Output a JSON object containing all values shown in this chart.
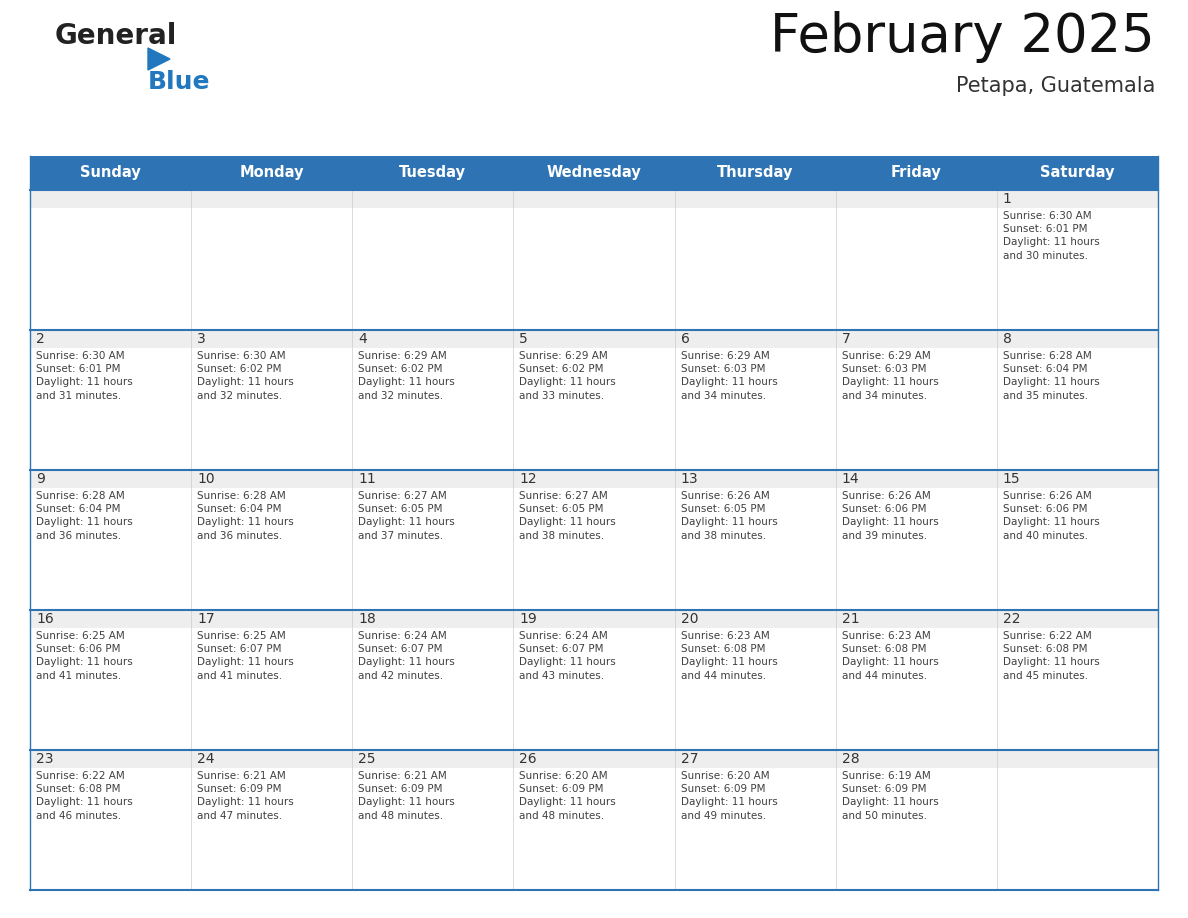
{
  "title": "February 2025",
  "subtitle": "Petapa, Guatemala",
  "header_bg": "#2E74B5",
  "header_text_color": "#FFFFFF",
  "cell_bg": "#FFFFFF",
  "cell_day_bg": "#EEEEEE",
  "cell_border_color": "#2E74B5",
  "cell_vert_border": "#CCCCCC",
  "day_num_color": "#333333",
  "body_text_color": "#404040",
  "days_of_week": [
    "Sunday",
    "Monday",
    "Tuesday",
    "Wednesday",
    "Thursday",
    "Friday",
    "Saturday"
  ],
  "weeks": [
    [
      {
        "day": "",
        "info": ""
      },
      {
        "day": "",
        "info": ""
      },
      {
        "day": "",
        "info": ""
      },
      {
        "day": "",
        "info": ""
      },
      {
        "day": "",
        "info": ""
      },
      {
        "day": "",
        "info": ""
      },
      {
        "day": "1",
        "info": "Sunrise: 6:30 AM\nSunset: 6:01 PM\nDaylight: 11 hours\nand 30 minutes."
      }
    ],
    [
      {
        "day": "2",
        "info": "Sunrise: 6:30 AM\nSunset: 6:01 PM\nDaylight: 11 hours\nand 31 minutes."
      },
      {
        "day": "3",
        "info": "Sunrise: 6:30 AM\nSunset: 6:02 PM\nDaylight: 11 hours\nand 32 minutes."
      },
      {
        "day": "4",
        "info": "Sunrise: 6:29 AM\nSunset: 6:02 PM\nDaylight: 11 hours\nand 32 minutes."
      },
      {
        "day": "5",
        "info": "Sunrise: 6:29 AM\nSunset: 6:02 PM\nDaylight: 11 hours\nand 33 minutes."
      },
      {
        "day": "6",
        "info": "Sunrise: 6:29 AM\nSunset: 6:03 PM\nDaylight: 11 hours\nand 34 minutes."
      },
      {
        "day": "7",
        "info": "Sunrise: 6:29 AM\nSunset: 6:03 PM\nDaylight: 11 hours\nand 34 minutes."
      },
      {
        "day": "8",
        "info": "Sunrise: 6:28 AM\nSunset: 6:04 PM\nDaylight: 11 hours\nand 35 minutes."
      }
    ],
    [
      {
        "day": "9",
        "info": "Sunrise: 6:28 AM\nSunset: 6:04 PM\nDaylight: 11 hours\nand 36 minutes."
      },
      {
        "day": "10",
        "info": "Sunrise: 6:28 AM\nSunset: 6:04 PM\nDaylight: 11 hours\nand 36 minutes."
      },
      {
        "day": "11",
        "info": "Sunrise: 6:27 AM\nSunset: 6:05 PM\nDaylight: 11 hours\nand 37 minutes."
      },
      {
        "day": "12",
        "info": "Sunrise: 6:27 AM\nSunset: 6:05 PM\nDaylight: 11 hours\nand 38 minutes."
      },
      {
        "day": "13",
        "info": "Sunrise: 6:26 AM\nSunset: 6:05 PM\nDaylight: 11 hours\nand 38 minutes."
      },
      {
        "day": "14",
        "info": "Sunrise: 6:26 AM\nSunset: 6:06 PM\nDaylight: 11 hours\nand 39 minutes."
      },
      {
        "day": "15",
        "info": "Sunrise: 6:26 AM\nSunset: 6:06 PM\nDaylight: 11 hours\nand 40 minutes."
      }
    ],
    [
      {
        "day": "16",
        "info": "Sunrise: 6:25 AM\nSunset: 6:06 PM\nDaylight: 11 hours\nand 41 minutes."
      },
      {
        "day": "17",
        "info": "Sunrise: 6:25 AM\nSunset: 6:07 PM\nDaylight: 11 hours\nand 41 minutes."
      },
      {
        "day": "18",
        "info": "Sunrise: 6:24 AM\nSunset: 6:07 PM\nDaylight: 11 hours\nand 42 minutes."
      },
      {
        "day": "19",
        "info": "Sunrise: 6:24 AM\nSunset: 6:07 PM\nDaylight: 11 hours\nand 43 minutes."
      },
      {
        "day": "20",
        "info": "Sunrise: 6:23 AM\nSunset: 6:08 PM\nDaylight: 11 hours\nand 44 minutes."
      },
      {
        "day": "21",
        "info": "Sunrise: 6:23 AM\nSunset: 6:08 PM\nDaylight: 11 hours\nand 44 minutes."
      },
      {
        "day": "22",
        "info": "Sunrise: 6:22 AM\nSunset: 6:08 PM\nDaylight: 11 hours\nand 45 minutes."
      }
    ],
    [
      {
        "day": "23",
        "info": "Sunrise: 6:22 AM\nSunset: 6:08 PM\nDaylight: 11 hours\nand 46 minutes."
      },
      {
        "day": "24",
        "info": "Sunrise: 6:21 AM\nSunset: 6:09 PM\nDaylight: 11 hours\nand 47 minutes."
      },
      {
        "day": "25",
        "info": "Sunrise: 6:21 AM\nSunset: 6:09 PM\nDaylight: 11 hours\nand 48 minutes."
      },
      {
        "day": "26",
        "info": "Sunrise: 6:20 AM\nSunset: 6:09 PM\nDaylight: 11 hours\nand 48 minutes."
      },
      {
        "day": "27",
        "info": "Sunrise: 6:20 AM\nSunset: 6:09 PM\nDaylight: 11 hours\nand 49 minutes."
      },
      {
        "day": "28",
        "info": "Sunrise: 6:19 AM\nSunset: 6:09 PM\nDaylight: 11 hours\nand 50 minutes."
      },
      {
        "day": "",
        "info": ""
      }
    ]
  ],
  "logo_general_color": "#222222",
  "logo_blue_color": "#2178BE"
}
